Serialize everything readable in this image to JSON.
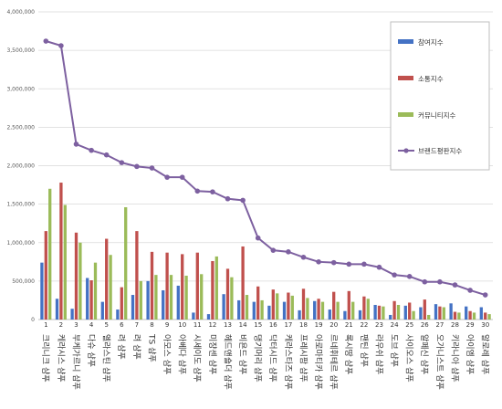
{
  "chart_data": {
    "type": "bar",
    "title": "",
    "xlabel": "",
    "ylabel": "",
    "ylim": [
      0,
      4000000
    ],
    "yticks": [
      0,
      500000,
      1000000,
      1500000,
      2000000,
      2500000,
      3000000,
      3500000,
      4000000
    ],
    "ytick_labels": [
      "0",
      "500,000",
      "1,000,000",
      "1,500,000",
      "2,000,000",
      "2,500,000",
      "3,000,000",
      "3,500,000",
      "4,000,000"
    ],
    "grid": true,
    "legend_position": "top-right",
    "numbers": [
      "1",
      "2",
      "3",
      "4",
      "5",
      "6",
      "7",
      "8",
      "9",
      "10",
      "11",
      "12",
      "13",
      "14",
      "15",
      "16",
      "17",
      "18",
      "19",
      "20",
      "21",
      "22",
      "23",
      "24",
      "25",
      "26",
      "27",
      "28",
      "29",
      "30"
    ],
    "categories": [
      "크리니크 샴푸",
      "케라시스 샴푸",
      "부케가르니 샴푸",
      "다슈 샴푸",
      "엘라스틴 샴푸",
      "려 샴푸",
      "려 샴푸",
      "TS 샴푸",
      "아모스 샴푸",
      "아베다 샴푸",
      "시세이도 샴푸",
      "미쟝센 샴푸",
      "헤드앤숄더 샴푸",
      "비욘드 샴푸",
      "댕기머리 샴푸",
      "닥터시드 샴푸",
      "케라스타즈 샴푸",
      "프레시팜 샴푸",
      "아로마티카 샴푸",
      "르네휘테르 샴푸",
      "록시땅 샴푸",
      "팬틴 샴푸",
      "라우쉬 샴푸",
      "도브 샴푸",
      "사이오스 샴푸",
      "알페신 샴푸",
      "오가니스트 샴푸",
      "키라니아 샴푸",
      "아이엠 샴푸",
      "알로레 샴푸"
    ],
    "series": [
      {
        "name": "참여지수",
        "color": "#4472c4",
        "values": [
          740000,
          270000,
          140000,
          540000,
          230000,
          130000,
          320000,
          500000,
          380000,
          440000,
          90000,
          70000,
          330000,
          250000,
          230000,
          180000,
          230000,
          120000,
          240000,
          130000,
          110000,
          120000,
          190000,
          60000,
          180000,
          160000,
          200000,
          210000,
          170000,
          160000
        ]
      },
      {
        "name": "소통지수",
        "color": "#c0504d",
        "values": [
          1150000,
          1780000,
          1130000,
          510000,
          1050000,
          420000,
          1150000,
          880000,
          870000,
          850000,
          870000,
          760000,
          660000,
          950000,
          430000,
          390000,
          350000,
          400000,
          270000,
          360000,
          370000,
          300000,
          180000,
          240000,
          220000,
          260000,
          170000,
          100000,
          110000,
          90000
        ]
      },
      {
        "name": "커뮤니티지수",
        "color": "#9bbb59",
        "values": [
          1700000,
          1490000,
          1000000,
          740000,
          840000,
          1460000,
          500000,
          580000,
          580000,
          570000,
          590000,
          820000,
          550000,
          320000,
          250000,
          340000,
          310000,
          280000,
          230000,
          230000,
          230000,
          270000,
          170000,
          190000,
          110000,
          60000,
          160000,
          90000,
          90000,
          70000
        ]
      },
      {
        "name": "브랜드평판지수",
        "color": "#7d60a0",
        "values": [
          3620000,
          3560000,
          2280000,
          2200000,
          2140000,
          2040000,
          1990000,
          1970000,
          1850000,
          1850000,
          1670000,
          1660000,
          1570000,
          1550000,
          1060000,
          900000,
          880000,
          810000,
          750000,
          740000,
          720000,
          720000,
          680000,
          580000,
          560000,
          490000,
          490000,
          450000,
          380000,
          320000
        ]
      }
    ]
  }
}
